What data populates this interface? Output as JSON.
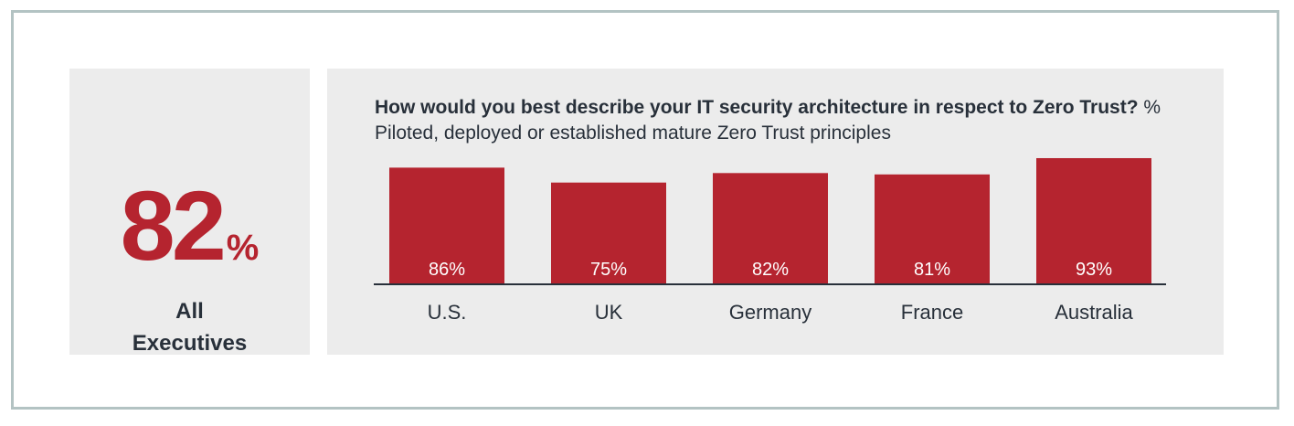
{
  "stat": {
    "value": "82",
    "unit": "%",
    "label_line1": "All",
    "label_line2": "Executives"
  },
  "colors": {
    "bar": "#b5242f",
    "text": "#28303a",
    "panel": "#ececec",
    "frame": "#b3c3c3"
  },
  "chart_data": {
    "type": "bar",
    "title": "How would you best describe your IT security architecture in respect to Zero Trust?",
    "subtitle": "% Piloted, deployed or established mature Zero Trust principles",
    "categories": [
      "U.S.",
      "UK",
      "Germany",
      "France",
      "Australia"
    ],
    "values": [
      86,
      75,
      82,
      81,
      93
    ],
    "data_labels": [
      "86%",
      "75%",
      "82%",
      "81%",
      "93%"
    ],
    "ylim": [
      0,
      100
    ],
    "grid": false,
    "legend": "none"
  }
}
